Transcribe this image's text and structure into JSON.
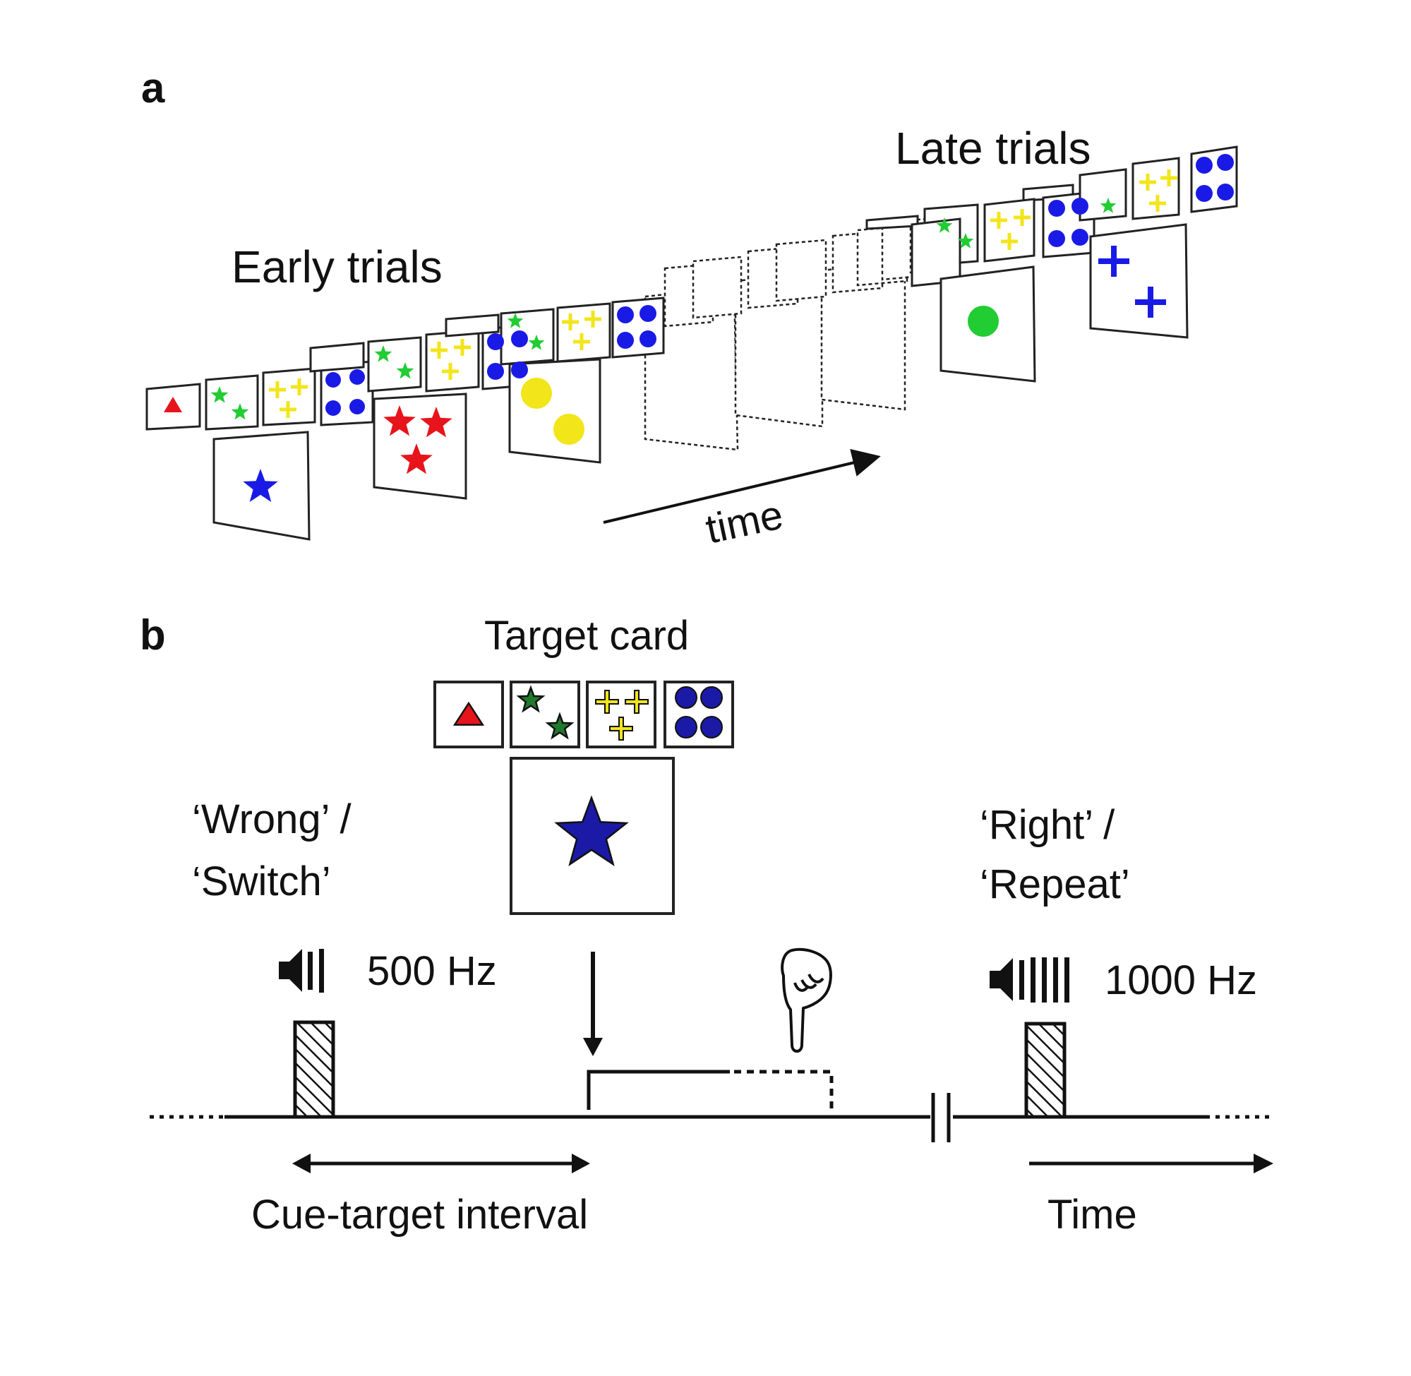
{
  "panel_a": {
    "label": "a",
    "early_label": "Early trials",
    "late_label": "Late trials",
    "time_label": "time"
  },
  "panel_b": {
    "label": "b",
    "target_label": "Target card",
    "wrong_line1": "‘Wrong’ /",
    "wrong_line2": "‘Switch’",
    "right_line1": "‘Right’ /",
    "right_line2": "‘Repeat’",
    "tone_low": "500 Hz",
    "tone_high": "1000 Hz",
    "interval_label": "Cue-target interval",
    "time_label": "Time"
  },
  "colors": {
    "red": "#e8141b",
    "green": "#22cc33",
    "dark_green": "#1f7a2c",
    "yellow": "#f2e51a",
    "blue": "#1a1ae6",
    "dark_blue": "#1a1aa6"
  },
  "icons": [
    "speaker-icon",
    "pointing-hand-icon",
    "star-icon",
    "triangle-icon",
    "cross-icon",
    "circle-icon"
  ]
}
